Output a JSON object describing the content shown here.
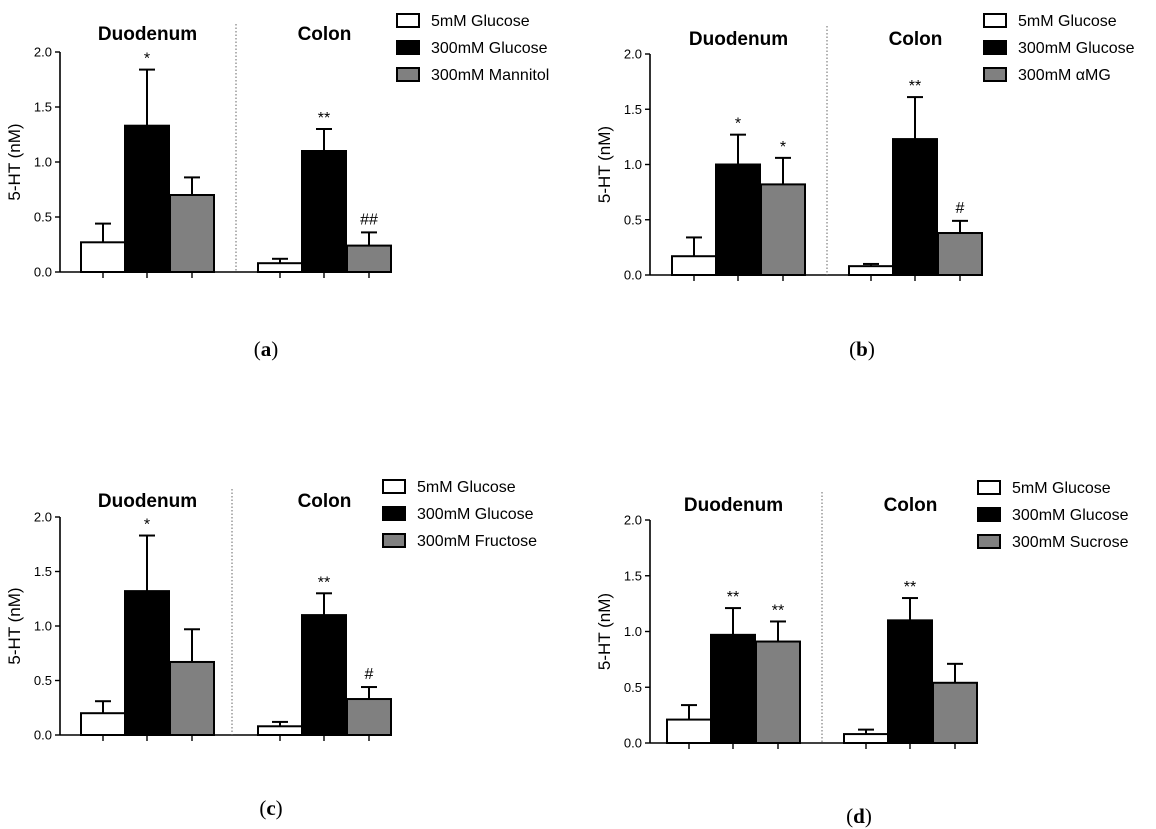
{
  "chart_data": [
    {
      "type": "bar",
      "panel": "(a)",
      "caption_letter": "a",
      "ylabel": "5-HT (nM)",
      "ylim": [
        0,
        2.0
      ],
      "yticks": [
        "0.0",
        "0.5",
        "1.0",
        "1.5",
        "2.0"
      ],
      "groups": [
        "Duodenum",
        "Colon"
      ],
      "series": [
        {
          "name": "5mM Glucose",
          "color": "#ffffff",
          "values": [
            0.27,
            0.08
          ],
          "errors": [
            0.17,
            0.04
          ]
        },
        {
          "name": "300mM Glucose",
          "color": "#000000",
          "values": [
            1.33,
            1.1
          ],
          "errors": [
            0.51,
            0.2
          ]
        },
        {
          "name": "300mM Mannitol",
          "color": "#808080",
          "values": [
            0.7,
            0.24
          ],
          "errors": [
            0.16,
            0.12
          ]
        }
      ],
      "annotations": [
        {
          "group": 0,
          "series": 1,
          "text": "*"
        },
        {
          "group": 1,
          "series": 1,
          "text": "**"
        },
        {
          "group": 1,
          "series": 2,
          "text": "##"
        }
      ]
    },
    {
      "type": "bar",
      "panel": "(b)",
      "caption_letter": "b",
      "ylabel": "5-HT (nM)",
      "ylim": [
        0,
        2.0
      ],
      "yticks": [
        "0.0",
        "0.5",
        "1.0",
        "1.5",
        "2.0"
      ],
      "groups": [
        "Duodenum",
        "Colon"
      ],
      "series": [
        {
          "name": "5mM Glucose",
          "color": "#ffffff",
          "values": [
            0.17,
            0.08
          ],
          "errors": [
            0.17,
            0.02
          ]
        },
        {
          "name": "300mM Glucose",
          "color": "#000000",
          "values": [
            1.0,
            1.23
          ],
          "errors": [
            0.27,
            0.38
          ]
        },
        {
          "name": "300mM αMG",
          "color": "#808080",
          "values": [
            0.82,
            0.38
          ],
          "errors": [
            0.24,
            0.11
          ]
        }
      ],
      "annotations": [
        {
          "group": 0,
          "series": 1,
          "text": "*"
        },
        {
          "group": 0,
          "series": 2,
          "text": "*"
        },
        {
          "group": 1,
          "series": 1,
          "text": "**"
        },
        {
          "group": 1,
          "series": 2,
          "text": "#"
        }
      ]
    },
    {
      "type": "bar",
      "panel": "(c)",
      "caption_letter": "c",
      "ylabel": "5-HT (nM)",
      "ylim": [
        0,
        2.0
      ],
      "yticks": [
        "0.0",
        "0.5",
        "1.0",
        "1.5",
        "2.0"
      ],
      "groups": [
        "Duodenum",
        "Colon"
      ],
      "series": [
        {
          "name": "5mM Glucose",
          "color": "#ffffff",
          "values": [
            0.2,
            0.08
          ],
          "errors": [
            0.11,
            0.04
          ]
        },
        {
          "name": "300mM Glucose",
          "color": "#000000",
          "values": [
            1.32,
            1.1
          ],
          "errors": [
            0.51,
            0.2
          ]
        },
        {
          "name": "300mM Fructose",
          "color": "#808080",
          "values": [
            0.67,
            0.33
          ],
          "errors": [
            0.3,
            0.11
          ]
        }
      ],
      "annotations": [
        {
          "group": 0,
          "series": 1,
          "text": "*"
        },
        {
          "group": 1,
          "series": 1,
          "text": "**"
        },
        {
          "group": 1,
          "series": 2,
          "text": "#"
        }
      ]
    },
    {
      "type": "bar",
      "panel": "(d)",
      "caption_letter": "d",
      "ylabel": "5-HT (nM)",
      "ylim": [
        0,
        2.0
      ],
      "yticks": [
        "0.0",
        "0.5",
        "1.0",
        "1.5",
        "2.0"
      ],
      "groups": [
        "Duodenum",
        "Colon"
      ],
      "series": [
        {
          "name": "5mM Glucose",
          "color": "#ffffff",
          "values": [
            0.21,
            0.08
          ],
          "errors": [
            0.13,
            0.04
          ]
        },
        {
          "name": "300mM Glucose",
          "color": "#000000",
          "values": [
            0.97,
            1.1
          ],
          "errors": [
            0.24,
            0.2
          ]
        },
        {
          "name": "300mM Sucrose",
          "color": "#808080",
          "values": [
            0.91,
            0.54
          ],
          "errors": [
            0.18,
            0.17
          ]
        }
      ],
      "annotations": [
        {
          "group": 0,
          "series": 1,
          "text": "**"
        },
        {
          "group": 0,
          "series": 2,
          "text": "**"
        },
        {
          "group": 1,
          "series": 1,
          "text": "**"
        }
      ]
    }
  ]
}
